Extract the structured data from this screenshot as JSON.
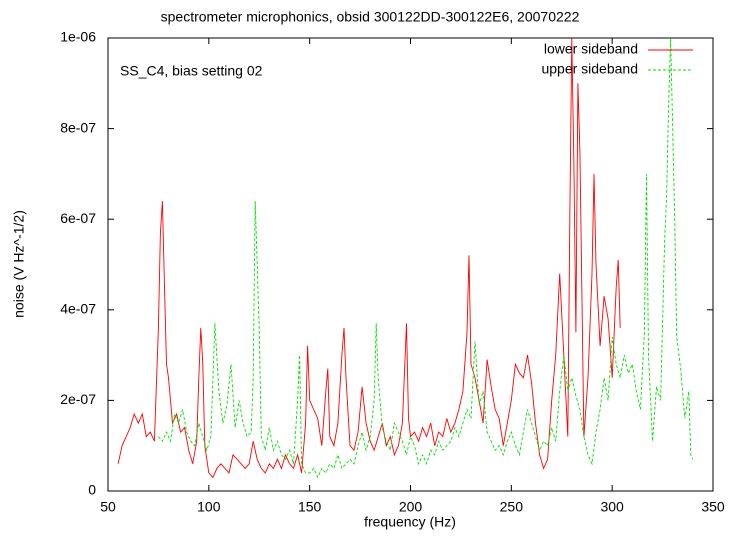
{
  "chart_data": {
    "type": "line",
    "title": "spectrometer microphonics, obsid 300122DD-300122E6, 20070222",
    "annotation": "SS_C4, bias setting 02",
    "x_label": "frequency (Hz)",
    "y_label": "noise (V Hz^-1/2)",
    "xlim": [
      50,
      350
    ],
    "xticks": [
      50,
      100,
      150,
      200,
      250,
      300,
      350
    ],
    "ylim": [
      0,
      1e-06
    ],
    "yticks": [
      0,
      {
        "value": 2e-07,
        "label": "2e-07"
      },
      {
        "value": 4e-07,
        "label": "4e-07"
      },
      {
        "value": 6e-07,
        "label": "6e-07"
      },
      {
        "value": 8e-07,
        "label": "8e-07"
      },
      {
        "value": 1e-06,
        "label": "1e-06"
      }
    ],
    "legend": "top-right",
    "series": [
      {
        "name": "lower sideband",
        "color": "#ff0000",
        "style": "solid",
        "x": [
          55,
          57,
          59,
          61,
          63,
          65,
          67,
          69,
          71,
          73,
          75,
          76,
          77,
          78,
          79,
          80,
          82,
          84,
          86,
          88,
          90,
          92,
          94,
          95,
          96,
          97,
          98,
          100,
          102,
          104,
          106,
          108,
          110,
          112,
          114,
          116,
          118,
          120,
          122,
          124,
          126,
          128,
          130,
          132,
          134,
          136,
          138,
          140,
          142,
          144,
          146,
          148,
          149,
          150,
          152,
          154,
          156,
          158,
          159,
          160,
          162,
          164,
          166,
          167,
          168,
          170,
          172,
          174,
          176,
          178,
          180,
          182,
          184,
          186,
          188,
          190,
          192,
          194,
          196,
          198,
          199,
          200,
          202,
          204,
          206,
          208,
          210,
          212,
          214,
          216,
          218,
          220,
          222,
          224,
          226,
          228,
          229,
          230,
          232,
          234,
          236,
          238,
          240,
          242,
          244,
          246,
          248,
          250,
          252,
          254,
          256,
          258,
          260,
          262,
          264,
          266,
          268,
          270,
          272,
          274,
          276,
          278,
          279,
          280,
          281,
          282,
          283,
          284,
          286,
          288,
          290,
          291,
          292,
          294,
          296,
          298,
          300,
          302,
          303,
          304
        ],
        "values": [
          6e-08,
          1e-07,
          1.2e-07,
          1.4e-07,
          1.7e-07,
          1.5e-07,
          1.7e-07,
          1.2e-07,
          1.3e-07,
          1.1e-07,
          3.6e-07,
          5.7e-07,
          6.4e-07,
          4.5e-07,
          2.8e-07,
          2.5e-07,
          1.5e-07,
          1.7e-07,
          1.3e-07,
          1.4e-07,
          9e-08,
          6e-08,
          1.1e-07,
          2.5e-07,
          3.6e-07,
          2.8e-07,
          1e-07,
          4e-08,
          3e-08,
          5e-08,
          6e-08,
          5e-08,
          4e-08,
          8e-08,
          7e-08,
          6e-08,
          5e-08,
          6e-08,
          1.1e-07,
          7e-08,
          5e-08,
          4e-08,
          6e-08,
          5e-08,
          7e-08,
          5e-08,
          8e-08,
          6e-08,
          5e-08,
          8e-08,
          4e-08,
          1.5e-07,
          3.2e-07,
          2e-07,
          1.8e-07,
          1.6e-07,
          1e-07,
          2.2e-07,
          2.7e-07,
          1.2e-07,
          1e-07,
          1.5e-07,
          3e-07,
          3.6e-07,
          2.5e-07,
          1e-07,
          9e-08,
          1.3e-07,
          2.3e-07,
          1.5e-07,
          1.1e-07,
          9e-08,
          1.2e-07,
          1.5e-07,
          1e-07,
          1.2e-07,
          8e-08,
          1e-07,
          1.5e-07,
          3.7e-07,
          1.6e-07,
          1.2e-07,
          1.3e-07,
          1.1e-07,
          1.4e-07,
          1.2e-07,
          1.5e-07,
          1e-07,
          1.3e-07,
          1.2e-07,
          1.6e-07,
          1.3e-07,
          1.5e-07,
          1.8e-07,
          2.2e-07,
          3.5e-07,
          5.2e-07,
          2.8e-07,
          2.5e-07,
          2e-07,
          1.5e-07,
          2.9e-07,
          2.3e-07,
          1.8e-07,
          1.6e-07,
          1e-07,
          1.5e-07,
          2e-07,
          2.8e-07,
          2.6e-07,
          2.5e-07,
          3e-07,
          2.4e-07,
          1.5e-07,
          8e-08,
          5e-08,
          7e-08,
          2e-07,
          3e-07,
          4.8e-07,
          3e-07,
          1.2e-07,
          6e-07,
          1e-06,
          7.2e-07,
          3.5e-07,
          9e-07,
          7.5e-07,
          1.2e-07,
          2.5e-07,
          4.8e-07,
          7e-07,
          5e-07,
          3.2e-07,
          4.3e-07,
          3.8e-07,
          2.5e-07,
          4.5e-07,
          5.1e-07,
          3.6e-07
        ]
      },
      {
        "name": "upper sideband",
        "color": "#00e000",
        "style": "dashed",
        "x": [
          75,
          77,
          79,
          81,
          83,
          85,
          87,
          89,
          91,
          93,
          95,
          97,
          99,
          101,
          103,
          105,
          107,
          109,
          111,
          113,
          115,
          117,
          119,
          121,
          122,
          123,
          124,
          125,
          126,
          128,
          130,
          132,
          134,
          136,
          138,
          140,
          142,
          144,
          145,
          146,
          148,
          150,
          152,
          154,
          156,
          158,
          160,
          162,
          164,
          166,
          168,
          170,
          172,
          174,
          176,
          178,
          180,
          182,
          183,
          184,
          186,
          188,
          190,
          192,
          194,
          196,
          198,
          200,
          202,
          204,
          206,
          208,
          210,
          212,
          214,
          216,
          218,
          220,
          222,
          224,
          226,
          228,
          230,
          232,
          234,
          236,
          238,
          240,
          242,
          244,
          246,
          248,
          250,
          252,
          254,
          256,
          258,
          260,
          262,
          264,
          266,
          268,
          270,
          272,
          274,
          276,
          278,
          280,
          282,
          284,
          286,
          288,
          290,
          292,
          294,
          296,
          298,
          300,
          302,
          304,
          306,
          308,
          310,
          312,
          314,
          316,
          317,
          318,
          320,
          322,
          324,
          326,
          327,
          328,
          329,
          330,
          331,
          332,
          334,
          336,
          338,
          339,
          340
        ],
        "values": [
          1.2e-07,
          1.1e-07,
          1.3e-07,
          1.1e-07,
          1.7e-07,
          1.5e-07,
          1.8e-07,
          1.3e-07,
          1.1e-07,
          1e-07,
          1.5e-07,
          1.2e-07,
          9e-08,
          1.2e-07,
          3.7e-07,
          2.2e-07,
          1.5e-07,
          1.9e-07,
          2.8e-07,
          1.4e-07,
          2e-07,
          1.5e-07,
          1.2e-07,
          1.3e-07,
          2.5e-07,
          6.4e-07,
          5e-07,
          3.5e-07,
          1.2e-07,
          9e-08,
          1.4e-07,
          9e-08,
          1.1e-07,
          8e-08,
          7e-08,
          9e-08,
          6e-08,
          2e-07,
          3e-07,
          6e-08,
          4e-08,
          4e-08,
          5e-08,
          3e-08,
          5e-08,
          4e-08,
          6e-08,
          5e-08,
          8e-08,
          5e-08,
          6e-08,
          7e-08,
          6e-08,
          1e-07,
          1.3e-07,
          9e-08,
          1.2e-07,
          2e-07,
          3.7e-07,
          2.5e-07,
          1.4e-07,
          1.1e-07,
          9e-08,
          1.5e-07,
          1.3e-07,
          1.1e-07,
          8e-08,
          1.2e-07,
          1e-07,
          6e-08,
          8e-08,
          6e-08,
          9e-08,
          8e-08,
          1.1e-07,
          9e-08,
          1e-07,
          1.1e-07,
          1.4e-07,
          1.2e-07,
          1.5e-07,
          1.8e-07,
          1.6e-07,
          3.3e-07,
          1.9e-07,
          2.2e-07,
          1.3e-07,
          1.1e-07,
          9e-08,
          1e-07,
          8e-08,
          1.1e-07,
          1.3e-07,
          1e-07,
          8e-08,
          1.3e-07,
          1.8e-07,
          1.5e-07,
          1.2e-07,
          9e-08,
          1.1e-07,
          1e-07,
          1.4e-07,
          1.1e-07,
          2.2e-07,
          3e-07,
          2.2e-07,
          2.5e-07,
          2.1e-07,
          1.8e-07,
          1.2e-07,
          8e-08,
          6e-08,
          1.3e-07,
          1.8e-07,
          2.5e-07,
          2e-07,
          3.4e-07,
          2.8e-07,
          2.5e-07,
          3e-07,
          2.6e-07,
          2.8e-07,
          2.2e-07,
          1.8e-07,
          3.5e-07,
          7e-07,
          3e-07,
          1.1e-07,
          2.3e-07,
          2e-07,
          5.5e-07,
          6.5e-07,
          8.5e-07,
          1e-06,
          8e-07,
          6e-07,
          3.4e-07,
          2.7e-07,
          1.6e-07,
          2.2e-07,
          8e-08,
          7e-08
        ]
      }
    ]
  }
}
